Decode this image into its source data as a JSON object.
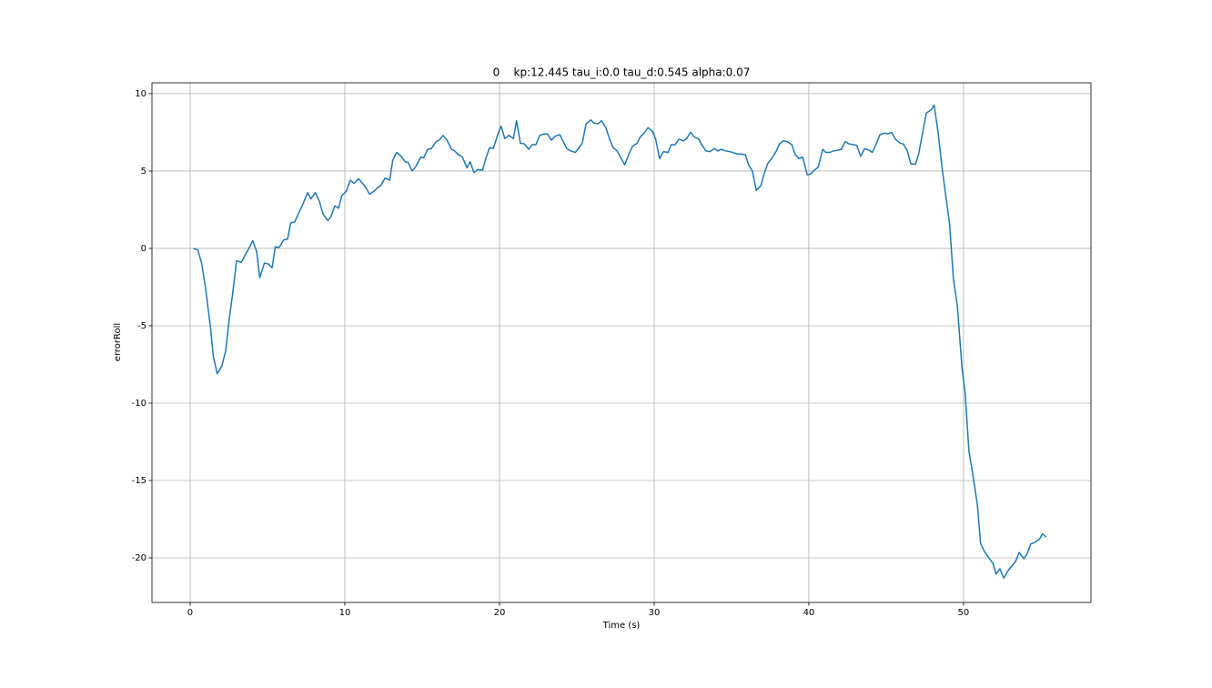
{
  "chart_data": {
    "type": "line",
    "title": "0    kp:12.445 tau_i:0.0 tau_d:0.545 alpha:0.07",
    "x_label": "Time (s)",
    "y_label": "errorRoll",
    "xlim": [
      -2.47,
      58.24
    ],
    "ylim": [
      -22.88,
      10.7
    ],
    "xticks": [
      0,
      10,
      20,
      30,
      40,
      50
    ],
    "yticks": [
      -20,
      -15,
      -10,
      -5,
      0,
      5,
      10
    ],
    "grid": true,
    "x": [
      0.2,
      0.5,
      0.75,
      1.0,
      1.3,
      1.5,
      1.75,
      2.05,
      2.3,
      2.5,
      2.75,
      3.0,
      3.3,
      3.6,
      3.8,
      4.05,
      4.3,
      4.5,
      4.8,
      5.05,
      5.3,
      5.5,
      5.75,
      6.05,
      6.3,
      6.5,
      6.75,
      7.05,
      7.3,
      7.6,
      7.8,
      8.1,
      8.35,
      8.6,
      8.9,
      9.1,
      9.35,
      9.6,
      9.8,
      10.1,
      10.35,
      10.6,
      10.9,
      11.1,
      11.35,
      11.6,
      11.9,
      12.1,
      12.35,
      12.6,
      12.9,
      13.1,
      13.35,
      13.6,
      13.9,
      14.1,
      14.35,
      14.6,
      14.9,
      15.1,
      15.35,
      15.6,
      15.9,
      16.1,
      16.35,
      16.6,
      16.9,
      17.1,
      17.35,
      17.6,
      17.9,
      18.1,
      18.35,
      18.6,
      18.9,
      19.1,
      19.35,
      19.6,
      19.9,
      20.1,
      20.35,
      20.6,
      20.9,
      21.1,
      21.35,
      21.6,
      21.9,
      22.1,
      22.35,
      22.6,
      22.9,
      23.1,
      23.35,
      23.6,
      23.9,
      24.1,
      24.35,
      24.6,
      24.9,
      25.1,
      25.35,
      25.6,
      25.9,
      26.1,
      26.35,
      26.6,
      26.9,
      27.1,
      27.35,
      27.6,
      27.9,
      28.1,
      28.35,
      28.6,
      28.9,
      29.1,
      29.35,
      29.6,
      29.9,
      30.1,
      30.35,
      30.6,
      30.9,
      31.1,
      31.35,
      31.6,
      31.9,
      32.1,
      32.35,
      32.6,
      32.9,
      33.1,
      33.35,
      33.6,
      33.9,
      34.1,
      34.35,
      34.6,
      34.9,
      35.1,
      35.35,
      35.6,
      35.9,
      36.1,
      36.35,
      36.6,
      36.9,
      37.1,
      37.35,
      37.6,
      37.9,
      38.1,
      38.35,
      38.6,
      38.9,
      39.1,
      39.35,
      39.6,
      39.9,
      40.1,
      40.35,
      40.6,
      40.9,
      41.1,
      41.35,
      41.6,
      41.9,
      42.1,
      42.35,
      42.6,
      42.9,
      43.1,
      43.35,
      43.6,
      43.9,
      44.1,
      44.35,
      44.6,
      44.9,
      45.1,
      45.35,
      45.6,
      45.9,
      46.1,
      46.35,
      46.6,
      46.9,
      47.1,
      47.35,
      47.6,
      47.9,
      48.1,
      48.35,
      48.6,
      48.9,
      49.1,
      49.35,
      49.6,
      49.9,
      50.1,
      50.35,
      50.6,
      50.9,
      51.1,
      51.35,
      51.6,
      51.9,
      52.1,
      52.35,
      52.6,
      52.9,
      53.1,
      53.35,
      53.6,
      53.9,
      54.1,
      54.35,
      54.6,
      54.9,
      55.1,
      55.35
    ],
    "series": [
      {
        "name": "errorRoll",
        "color": "#1f77b4",
        "values": [
          0,
          -0.1,
          -1,
          -2.6,
          -5,
          -7,
          -8.1,
          -7.6,
          -6.6,
          -4.8,
          -2.9,
          -0.8,
          -0.9,
          -0.35,
          0,
          0.5,
          -0.2,
          -1.9,
          -0.95,
          -1.0,
          -1.25,
          0.1,
          0.05,
          0.55,
          0.6,
          1.65,
          1.7,
          2.35,
          2.9,
          3.6,
          3.2,
          3.6,
          3.05,
          2.2,
          1.8,
          2.05,
          2.75,
          2.6,
          3.4,
          3.7,
          4.4,
          4.2,
          4.5,
          4.25,
          3.95,
          3.5,
          3.7,
          3.9,
          4.1,
          4.55,
          4.4,
          5.7,
          6.2,
          6.0,
          5.6,
          5.55,
          5.0,
          5.3,
          5.9,
          5.85,
          6.4,
          6.45,
          6.9,
          7.0,
          7.3,
          7.0,
          6.4,
          6.3,
          6.05,
          5.9,
          5.2,
          5.6,
          4.9,
          5.1,
          5.05,
          5.75,
          6.5,
          6.45,
          7.4,
          7.9,
          7.1,
          7.3,
          7.1,
          8.25,
          6.8,
          6.75,
          6.4,
          6.7,
          6.7,
          7.3,
          7.4,
          7.4,
          7.0,
          7.25,
          7.35,
          6.95,
          6.45,
          6.3,
          6.2,
          6.45,
          6.8,
          8.05,
          8.3,
          8.1,
          8.05,
          8.25,
          7.75,
          7.1,
          6.5,
          6.3,
          5.75,
          5.4,
          6.05,
          6.6,
          6.8,
          7.2,
          7.45,
          7.8,
          7.55,
          7.05,
          5.8,
          6.25,
          6.2,
          6.7,
          6.7,
          7.05,
          6.95,
          7.1,
          7.5,
          7.2,
          7.05,
          6.65,
          6.3,
          6.25,
          6.45,
          6.3,
          6.4,
          6.3,
          6.25,
          6.2,
          6.1,
          6.1,
          6.05,
          5.4,
          5.0,
          3.75,
          4.05,
          4.8,
          5.5,
          5.8,
          6.3,
          6.75,
          6.95,
          6.9,
          6.7,
          6.1,
          5.8,
          5.9,
          4.75,
          4.8,
          5.05,
          5.25,
          6.4,
          6.2,
          6.2,
          6.3,
          6.35,
          6.4,
          6.9,
          6.75,
          6.7,
          6.65,
          5.95,
          6.45,
          6.35,
          6.2,
          6.75,
          7.35,
          7.45,
          7.4,
          7.5,
          7.05,
          6.8,
          6.75,
          6.35,
          5.45,
          5.45,
          6.1,
          7.45,
          8.75,
          8.95,
          9.25,
          7.55,
          5.3,
          3.05,
          1.55,
          -2.0,
          -3.7,
          -7.7,
          -9.3,
          -13.1,
          -14.6,
          -16.6,
          -19.05,
          -19.6,
          -19.95,
          -20.35,
          -21.05,
          -20.7,
          -21.3,
          -20.8,
          -20.55,
          -20.25,
          -19.65,
          -20.05,
          -19.75,
          -19.1,
          -19.0,
          -18.8,
          -18.45,
          -18.65
        ]
      }
    ]
  }
}
